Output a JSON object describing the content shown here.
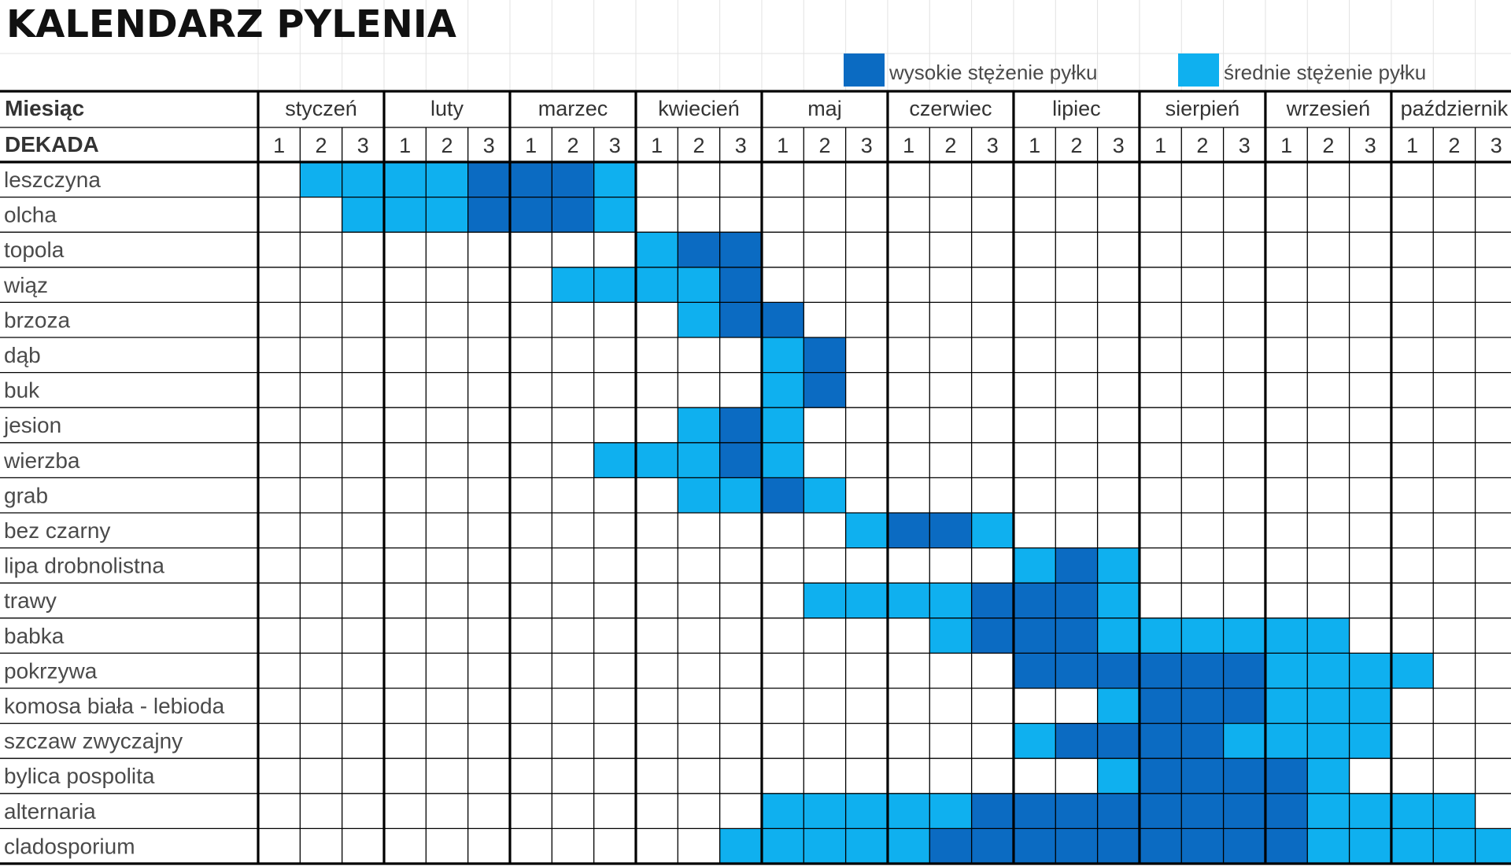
{
  "chart_data": {
    "type": "heatmap",
    "title": "KALENDARZ PYLENIA",
    "row_header": "Miesiąc",
    "decade_header": "DEKADA",
    "months": [
      "styczeń",
      "luty",
      "marzec",
      "kwiecień",
      "maj",
      "czerwiec",
      "lipiec",
      "sierpień",
      "wrzesień",
      "październik"
    ],
    "decades": [
      "1",
      "2",
      "3"
    ],
    "legend": [
      {
        "key": "H",
        "label": "wysokie stężenie pyłku",
        "color": "#0b6bc2"
      },
      {
        "key": "M",
        "label": "średnie stężenie pyłku",
        "color": "#0fb0ef"
      }
    ],
    "rows": [
      {
        "name": "leszczyna",
        "cells": ".MMMMHHHM....................."
      },
      {
        "name": "olcha",
        "cells": "..MMMHHHM....................."
      },
      {
        "name": "topola",
        "cells": ".........MHH.................."
      },
      {
        "name": "wiąz",
        "cells": ".......MMMMH.................."
      },
      {
        "name": "brzoza",
        "cells": "..........MHH................."
      },
      {
        "name": "dąb",
        "cells": "............MH................"
      },
      {
        "name": "buk",
        "cells": "............MH................"
      },
      {
        "name": "jesion",
        "cells": "..........MHM................."
      },
      {
        "name": "wierzba",
        "cells": "........MMMHM................."
      },
      {
        "name": "grab",
        "cells": "..........MMHM................"
      },
      {
        "name": "bez czarny",
        "cells": "..............MHHM............"
      },
      {
        "name": "lipa drobnolistna",
        "cells": "..................MHM........."
      },
      {
        "name": "trawy",
        "cells": ".............MMMMHHHM........."
      },
      {
        "name": "babka",
        "cells": "................MHHHMMMMMM...."
      },
      {
        "name": "pokrzywa",
        "cells": "..................HHHHHHMMMM.."
      },
      {
        "name": "komosa biała - lebioda",
        "cells": "....................MHHHMMM..."
      },
      {
        "name": "szczaw zwyczajny",
        "cells": "..................MHHHHMMMM..."
      },
      {
        "name": "bylica pospolita",
        "cells": "....................MHHHHM...."
      },
      {
        "name": "alternaria",
        "cells": "............MMMMMHHHHHHHHMMMM."
      },
      {
        "name": "cladosporium",
        "cells": "...........MMMMMHHHHHHHHHMMMMM"
      }
    ]
  }
}
